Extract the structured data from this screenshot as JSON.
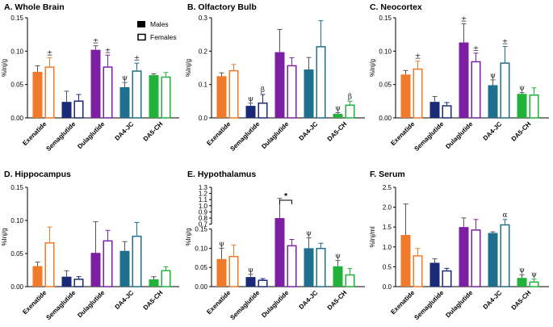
{
  "colors": {
    "Exenatide": "#f07a2a",
    "Semaglutide": "#1a2a78",
    "Dulaglutide": "#7d1fa3",
    "DA4-JC": "#1f6f8f",
    "DA5-CH": "#21b23a"
  },
  "legend": {
    "males": "Males",
    "females": "Females"
  },
  "chart_data": [
    {
      "type": "bar",
      "panel": "A",
      "title": "A. Whole Brain",
      "ylabel": "%Inj/g",
      "categories": [
        "Exenatide",
        "Semaglutide",
        "Dulaglutide",
        "DA4-JC",
        "DA5-CH"
      ],
      "ylim": [
        0,
        0.15
      ],
      "yticks": [
        0,
        0.05,
        0.1,
        0.15
      ],
      "yticklabels": [
        "0.00",
        "0.05",
        "0.10",
        "0.15"
      ],
      "series": [
        {
          "name": "Males",
          "values": [
            0.069,
            0.024,
            0.102,
            0.046,
            0.064
          ],
          "err": [
            0.009,
            0.016,
            0.006,
            0.007,
            0.002
          ]
        },
        {
          "name": "Females",
          "values": [
            0.077,
            0.026,
            0.077,
            0.071,
            0.062
          ],
          "err": [
            0.013,
            0.009,
            0.017,
            0.011,
            0.006
          ]
        }
      ],
      "annotations": [
        {
          "cat": 0,
          "series": 1,
          "text": "±"
        },
        {
          "cat": 2,
          "series": 0,
          "text": "±"
        },
        {
          "cat": 2,
          "series": 1,
          "text": "±"
        },
        {
          "cat": 3,
          "series": 0,
          "text": "ψ"
        },
        {
          "cat": 3,
          "series": 1,
          "text": "±"
        }
      ]
    },
    {
      "type": "bar",
      "panel": "B",
      "title": "B. Olfactory Bulb",
      "ylabel": "%Inj/g",
      "categories": [
        "Exenatide",
        "Semaglutide",
        "Dulaglutide",
        "DA4-JC",
        "DA5-CH"
      ],
      "ylim": [
        0,
        0.3
      ],
      "yticks": [
        0,
        0.1,
        0.2,
        0.3
      ],
      "yticklabels": [
        "0.0",
        "0.1",
        "0.2",
        "0.3"
      ],
      "series": [
        {
          "name": "Males",
          "values": [
            0.125,
            0.036,
            0.197,
            0.145,
            0.012
          ],
          "err": [
            0.01,
            0.008,
            0.068,
            0.036,
            0.004
          ]
        },
        {
          "name": "Females",
          "values": [
            0.143,
            0.046,
            0.158,
            0.215,
            0.04
          ],
          "err": [
            0.017,
            0.024,
            0.022,
            0.076,
            0.01
          ]
        }
      ],
      "annotations": [
        {
          "cat": 1,
          "series": 0,
          "text": "ψ"
        },
        {
          "cat": 1,
          "series": 1,
          "text": "β"
        },
        {
          "cat": 4,
          "series": 0,
          "text": "ψ"
        },
        {
          "cat": 4,
          "series": 1,
          "text": "β"
        }
      ]
    },
    {
      "type": "bar",
      "panel": "C",
      "title": "C. Neocortex",
      "ylabel": "%Inj/g",
      "categories": [
        "Exenatide",
        "Semaglutide",
        "Dulaglutide",
        "DA4-JC",
        "DA5-CH"
      ],
      "ylim": [
        0,
        0.15
      ],
      "yticks": [
        0,
        0.05,
        0.1,
        0.15
      ],
      "yticklabels": [
        "0.00",
        "0.05",
        "0.10",
        "0.15"
      ],
      "series": [
        {
          "name": "Males",
          "values": [
            0.065,
            0.024,
            0.113,
            0.049,
            0.036
          ],
          "err": [
            0.006,
            0.008,
            0.028,
            0.008,
            0.002
          ]
        },
        {
          "name": "Females",
          "values": [
            0.074,
            0.019,
            0.085,
            0.083,
            0.035
          ],
          "err": [
            0.011,
            0.004,
            0.012,
            0.024,
            0.01
          ]
        }
      ],
      "annotations": [
        {
          "cat": 0,
          "series": 1,
          "text": "±"
        },
        {
          "cat": 2,
          "series": 0,
          "text": "±"
        },
        {
          "cat": 2,
          "series": 1,
          "text": "±"
        },
        {
          "cat": 3,
          "series": 0,
          "text": "ψ"
        },
        {
          "cat": 3,
          "series": 1,
          "text": "±"
        },
        {
          "cat": 4,
          "series": 0,
          "text": "ψ"
        }
      ]
    },
    {
      "type": "bar",
      "panel": "D",
      "title": "D. Hippocampus",
      "ylabel": "%Inj/g",
      "categories": [
        "Exenatide",
        "Semaglutide",
        "Dulaglutide",
        "DA4-JC",
        "DA5-CH"
      ],
      "ylim": [
        0,
        0.15
      ],
      "yticks": [
        0,
        0.05,
        0.1,
        0.15
      ],
      "yticklabels": [
        "0.00",
        "0.05",
        "0.10",
        "0.15"
      ],
      "series": [
        {
          "name": "Males",
          "values": [
            0.031,
            0.015,
            0.051,
            0.054,
            0.011
          ],
          "err": [
            0.006,
            0.009,
            0.047,
            0.014,
            0.004
          ]
        },
        {
          "name": "Females",
          "values": [
            0.067,
            0.012,
            0.07,
            0.077,
            0.025
          ],
          "err": [
            0.023,
            0.003,
            0.015,
            0.02,
            0.005
          ]
        }
      ],
      "annotations": []
    },
    {
      "type": "bar",
      "panel": "E",
      "title": "E. Hypothalamus",
      "ylabel": "%Inj/g",
      "categories": [
        "Exenatide",
        "Semaglutide",
        "Dulaglutide",
        "DA4-JC",
        "DA5-CH"
      ],
      "ylim": [
        0,
        1.3
      ],
      "axis_break": [
        0.15,
        0.7
      ],
      "yticks": [
        0,
        0.05,
        0.1,
        0.15,
        0.7,
        0.8,
        0.9,
        1.0,
        1.1,
        1.2,
        1.3
      ],
      "yticklabels": [
        "0.00",
        "0.05",
        "0.10",
        "0.15",
        "0.7",
        "0.8",
        "0.9",
        "1.0",
        "1.1",
        "1.2",
        "1.3"
      ],
      "series": [
        {
          "name": "Males",
          "values": [
            0.072,
            0.025,
            0.8,
            0.1,
            0.053
          ],
          "err": [
            0.028,
            0.007,
            0.32,
            0.027,
            0.015
          ]
        },
        {
          "name": "Females",
          "values": [
            0.08,
            0.018,
            0.108,
            0.101,
            0.032
          ],
          "err": [
            0.028,
            0.003,
            0.015,
            0.012,
            0.015
          ]
        }
      ],
      "annotations": [
        {
          "cat": 0,
          "series": 0,
          "text": "ψ"
        },
        {
          "cat": 1,
          "series": 0,
          "text": "ψ"
        },
        {
          "cat": 3,
          "series": 0,
          "text": "ψ"
        },
        {
          "cat": 4,
          "series": 0,
          "text": "ψ"
        }
      ],
      "significance": {
        "cat": 2,
        "text": "*"
      }
    },
    {
      "type": "bar",
      "panel": "F",
      "title": "F. Serum",
      "ylabel": "%Inj/ml",
      "categories": [
        "Exenatide",
        "Semaglutide",
        "Dulaglutide",
        "DA4-JC",
        "DA5-CH"
      ],
      "ylim": [
        0,
        2.5
      ],
      "yticks": [
        0,
        0.5,
        1.0,
        1.5,
        2.0,
        2.5
      ],
      "yticklabels": [
        "0.0",
        "0.5",
        "1.0",
        "1.5",
        "2.0",
        "2.5"
      ],
      "series": [
        {
          "name": "Males",
          "values": [
            1.3,
            0.6,
            1.5,
            1.35,
            0.22
          ],
          "err": [
            0.78,
            0.1,
            0.23,
            0.03,
            0.08
          ]
        },
        {
          "name": "Females",
          "values": [
            0.79,
            0.41,
            1.44,
            1.57,
            0.13
          ],
          "err": [
            0.17,
            0.05,
            0.25,
            0.12,
            0.06
          ]
        }
      ],
      "annotations": [
        {
          "cat": 3,
          "series": 1,
          "text": "α"
        },
        {
          "cat": 4,
          "series": 0,
          "text": "ψ"
        },
        {
          "cat": 4,
          "series": 1,
          "text": "ψ"
        }
      ]
    }
  ]
}
